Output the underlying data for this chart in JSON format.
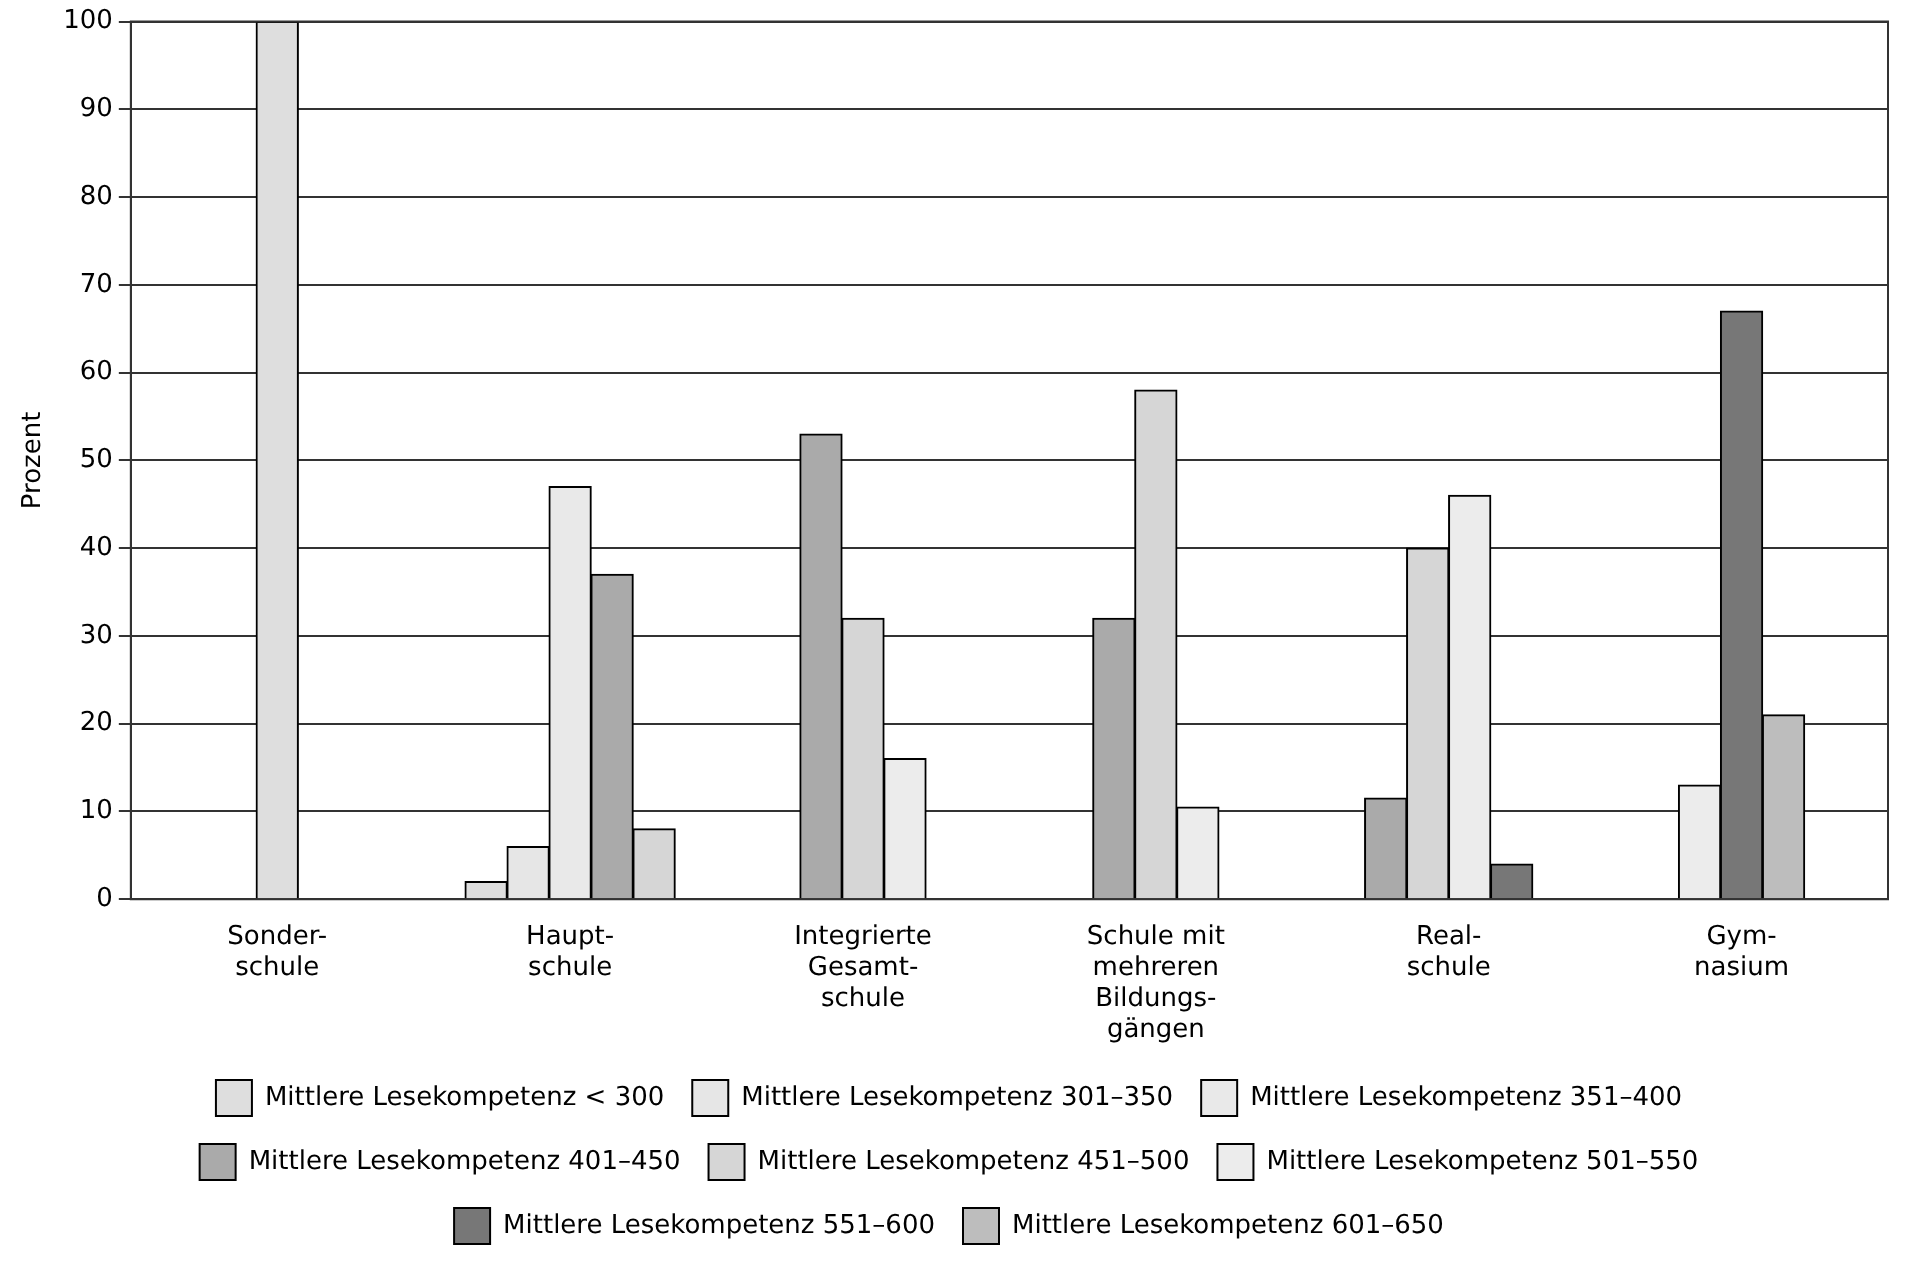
{
  "chart_data": {
    "type": "bar",
    "ylabel": "Prozent",
    "categories": [
      "Sonder-\nschule",
      "Haupt-\nschule",
      "Integrierte\nGesamt-\nschule",
      "Schule mit\nmehreren\nBildungs-\ngängen",
      "Real-\nschule",
      "Gym-\nnasium"
    ],
    "series": [
      {
        "name": "Mittlere Lesekompetenz < 300",
        "color": "#dedede",
        "values": [
          100,
          2,
          null,
          null,
          null,
          null
        ]
      },
      {
        "name": "Mittlere Lesekompetenz 301–350",
        "color": "#e6e6e6",
        "values": [
          null,
          6,
          null,
          null,
          null,
          null
        ]
      },
      {
        "name": "Mittlere Lesekompetenz 351–400",
        "color": "#e9e9e9",
        "values": [
          null,
          47,
          null,
          null,
          null,
          null
        ]
      },
      {
        "name": "Mittlere Lesekompetenz 401–450",
        "color": "#aaaaaa",
        "values": [
          null,
          37,
          53,
          32,
          11.5,
          null
        ]
      },
      {
        "name": "Mittlere Lesekompetenz 451–500",
        "color": "#d6d6d6",
        "values": [
          null,
          8,
          32,
          58,
          40,
          null
        ]
      },
      {
        "name": "Mittlere Lesekompetenz 501–550",
        "color": "#ececec",
        "values": [
          null,
          null,
          16,
          10.5,
          46,
          13
        ]
      },
      {
        "name": "Mittlere Lesekompetenz 551–600",
        "color": "#777777",
        "values": [
          null,
          null,
          null,
          null,
          4,
          67
        ]
      },
      {
        "name": "Mittlere Lesekompetenz 601–650",
        "color": "#bdbdbd",
        "values": [
          null,
          null,
          null,
          null,
          null,
          21
        ]
      }
    ],
    "ylim": [
      0,
      100
    ],
    "yticks": [
      0,
      10,
      20,
      30,
      40,
      50,
      60,
      70,
      80,
      90,
      100
    ],
    "grid": "y",
    "legend": "bottom"
  }
}
